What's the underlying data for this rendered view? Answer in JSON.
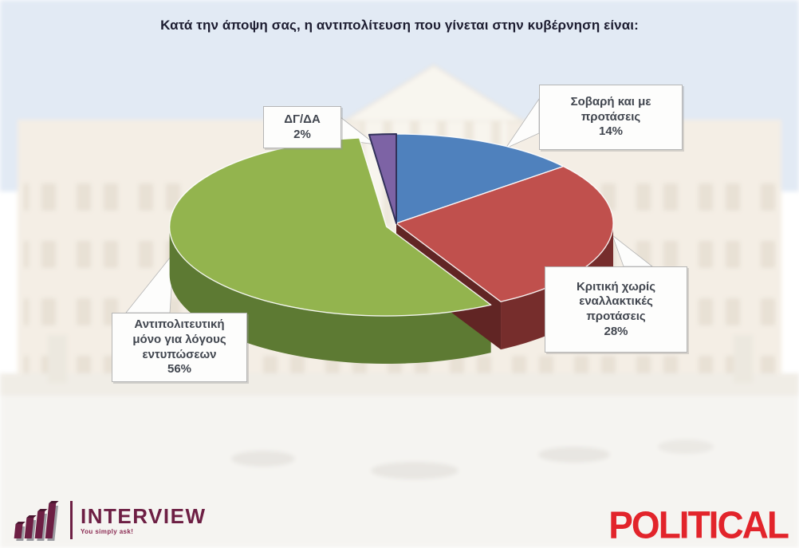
{
  "title": "Κατά την άποψη σας, η αντιπολίτευση που γίνεται στην κυβέρνηση είναι:",
  "chart_data": {
    "type": "pie",
    "style": "3d",
    "title": "Κατά την άποψη σας, η αντιπολίτευση που γίνεται στην κυβέρνηση είναι:",
    "direction": "clockwise",
    "start_angle_deg": 0,
    "labels_show_percent": true,
    "slices": [
      {
        "key": "serious",
        "label": "Σοβαρή και με προτάσεις",
        "value": 14,
        "color": "#4f81bd",
        "side_color": "#31517a"
      },
      {
        "key": "criticism-no-alternatives",
        "label": "Κριτική χωρίς εναλλακτικές προτάσεις",
        "value": 28,
        "color": "#c0504d",
        "side_color": "#762d2c"
      },
      {
        "key": "opposition-for-impressions",
        "label": "Αντιπολιτευτική μόνο για λόγους εντυπώσεων",
        "value": 56,
        "color": "#93b44e",
        "side_color": "#5d7a33",
        "exploded": true
      },
      {
        "key": "dk-da",
        "label": "ΔΓ/ΔΑ",
        "value": 2,
        "color": "#7d63a5",
        "side_color": "#2e2e54",
        "outline": "#31315a"
      }
    ]
  },
  "callouts": {
    "serious": {
      "lines": [
        "Σοβαρή και με",
        "προτάσεις"
      ],
      "pct": "14%"
    },
    "criticism": {
      "lines": [
        "Κριτική χωρίς",
        "εναλλακτικές",
        "προτάσεις"
      ],
      "pct": "28%"
    },
    "impress": {
      "lines": [
        "Αντιπολιτευτική",
        "μόνο για λόγους",
        "εντυπώσεων"
      ],
      "pct": "56%"
    },
    "dk": {
      "lines": [
        "ΔΓ/ΔΑ"
      ],
      "pct": "2%"
    }
  },
  "footer": {
    "interview": {
      "name": "INTERVIEW",
      "tagline": "You simply ask!",
      "brand_color": "#6d1f44"
    },
    "political": {
      "text": "POLITICAL",
      "color": "#e2242b"
    }
  }
}
